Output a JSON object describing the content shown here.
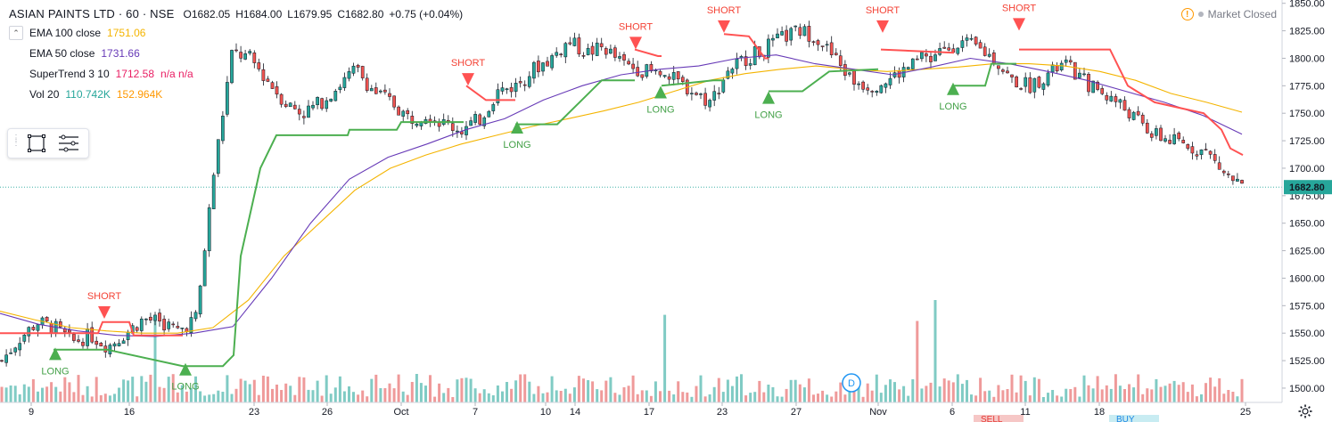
{
  "header": {
    "symbol": "ASIAN PAINTS LTD · 60 · NSE",
    "ohlc": {
      "open": "O1682.05",
      "high": "H1684.00",
      "low": "L1679.95",
      "close": "C1682.80",
      "change": "+0.75 (+0.04%)"
    },
    "market_status": "Market Closed"
  },
  "indicators": [
    {
      "name": "EMA 100 close",
      "value": "1751.06",
      "color": "#f4b400"
    },
    {
      "name": "EMA 50 close",
      "value": "1731.66",
      "color": "#673ab7"
    },
    {
      "name": "SuperTrend 3 10",
      "value": "1712.58",
      "extra": "n/a  n/a",
      "color": "#e91e63"
    },
    {
      "name": "Vol 20",
      "value": "110.742K",
      "value2": "152.964K",
      "color": "#26a69a",
      "color2": "#ff9800"
    }
  ],
  "toolbox": {
    "icons": [
      "rectangle-icon",
      "settings-lines-icon"
    ]
  },
  "last_price_label": "1682.80",
  "source_label": "D",
  "bottom_labels": [
    "SELL",
    "BUY"
  ],
  "colors": {
    "up": "#26a69a",
    "down": "#ef5350",
    "ema100": "#f4b400",
    "ema50": "#673ab7",
    "st_up": "#4caf50",
    "st_down": "#ff5252",
    "vol_up": "#80cbc4",
    "vol_down": "#ef9a9a"
  },
  "chart_data": {
    "type": "candlestick",
    "y_axis_ticks": [
      "1850.00",
      "1825.00",
      "1800.00",
      "1775.00",
      "1750.00",
      "1725.00",
      "1700.00",
      "1675.00",
      "1650.00",
      "1625.00",
      "1600.00",
      "1575.00",
      "1550.00",
      "1525.00",
      "1500.00"
    ],
    "y_range": [
      1487,
      1853
    ],
    "x_axis_ticks": [
      "9",
      "16",
      "23",
      "26",
      "Oct",
      "7",
      "10",
      "14",
      "17",
      "23",
      "27",
      "Nov",
      "6",
      "11",
      "18",
      "25"
    ],
    "close_waypoints": [
      1525,
      1545,
      1560,
      1555,
      1542,
      1548,
      1538,
      1550,
      1563,
      1560,
      1552,
      1565,
      1700,
      1805,
      1800,
      1780,
      1760,
      1750,
      1760,
      1775,
      1790,
      1770,
      1760,
      1745,
      1750,
      1740,
      1735,
      1745,
      1770,
      1775,
      1790,
      1800,
      1815,
      1805,
      1810,
      1795,
      1790,
      1785,
      1780,
      1770,
      1760,
      1790,
      1800,
      1808,
      1818,
      1825,
      1820,
      1800,
      1780,
      1775,
      1780,
      1790,
      1800,
      1805,
      1815,
      1810,
      1800,
      1780,
      1775,
      1785,
      1795,
      1780,
      1770,
      1760,
      1745,
      1730,
      1725,
      1720,
      1715,
      1695,
      1683
    ],
    "ema100_waypoints": [
      1570,
      1562,
      1555,
      1552,
      1550,
      1550,
      1555,
      1580,
      1620,
      1650,
      1680,
      1700,
      1712,
      1722,
      1730,
      1738,
      1745,
      1752,
      1760,
      1770,
      1780,
      1786,
      1790,
      1793,
      1790,
      1788,
      1790,
      1792,
      1795,
      1795,
      1793,
      1788,
      1780,
      1768,
      1760,
      1751
    ],
    "ema50_waypoints": [
      1568,
      1558,
      1552,
      1548,
      1547,
      1550,
      1556,
      1600,
      1650,
      1690,
      1710,
      1722,
      1735,
      1745,
      1762,
      1775,
      1785,
      1790,
      1793,
      1800,
      1803,
      1795,
      1790,
      1785,
      1792,
      1800,
      1795,
      1788,
      1780,
      1770,
      1760,
      1748,
      1731
    ],
    "supertrend_segments": [
      {
        "dir": "down",
        "points": [
          [
            0,
            1550
          ],
          [
            110,
            1550
          ],
          [
            115,
            1560
          ],
          [
            145,
            1560
          ],
          [
            150,
            1548
          ],
          [
            205,
            1548
          ]
        ]
      },
      {
        "dir": "up",
        "points": [
          [
            60,
            1535
          ],
          [
            110,
            1535
          ],
          [
            120,
            1535
          ],
          [
            205,
            1520
          ],
          [
            212,
            1520
          ],
          [
            250,
            1520
          ],
          [
            262,
            1530
          ],
          [
            270,
            1620
          ],
          [
            292,
            1700
          ],
          [
            310,
            1730
          ],
          [
            390,
            1730
          ],
          [
            392,
            1735
          ],
          [
            445,
            1735
          ],
          [
            450,
            1742
          ],
          [
            520,
            1742
          ]
        ]
      },
      {
        "dir": "down",
        "points": [
          [
            523,
            1775
          ],
          [
            545,
            1762
          ],
          [
            578,
            1762
          ]
        ]
      },
      {
        "dir": "up",
        "points": [
          [
            578,
            1740
          ],
          [
            625,
            1740
          ],
          [
            650,
            1760
          ],
          [
            675,
            1780
          ],
          [
            712,
            1780
          ]
        ]
      },
      {
        "dir": "down",
        "points": [
          [
            712,
            1808
          ],
          [
            738,
            1802
          ],
          [
            742,
            1802
          ]
        ]
      },
      {
        "dir": "up",
        "points": [
          [
            742,
            1775
          ],
          [
            800,
            1780
          ],
          [
            812,
            1780
          ]
        ]
      },
      {
        "dir": "down",
        "points": [
          [
            812,
            1822
          ],
          [
            840,
            1820
          ],
          [
            858,
            1800
          ],
          [
            862,
            1800
          ]
        ]
      },
      {
        "dir": "up",
        "points": [
          [
            862,
            1770
          ],
          [
            900,
            1770
          ],
          [
            930,
            1788
          ],
          [
            985,
            1790
          ]
        ]
      },
      {
        "dir": "down",
        "points": [
          [
            988,
            1808
          ],
          [
            1070,
            1805
          ]
        ]
      },
      {
        "dir": "up",
        "points": [
          [
            1070,
            1775
          ],
          [
            1105,
            1775
          ],
          [
            1112,
            1795
          ],
          [
            1140,
            1795
          ]
        ]
      },
      {
        "dir": "down",
        "points": [
          [
            1143,
            1808
          ],
          [
            1245,
            1808
          ],
          [
            1265,
            1775
          ],
          [
            1295,
            1760
          ],
          [
            1350,
            1750
          ],
          [
            1370,
            1735
          ],
          [
            1380,
            1718
          ],
          [
            1394,
            1712
          ]
        ]
      }
    ],
    "signals": [
      {
        "label": "LONG",
        "type": "long",
        "x": 62,
        "price": 1532
      },
      {
        "label": "SHORT",
        "type": "short",
        "x": 117,
        "price": 1568
      },
      {
        "label": "LONG",
        "type": "long",
        "x": 208,
        "price": 1518
      },
      {
        "label": "SHORT",
        "type": "short",
        "x": 525,
        "price": 1780
      },
      {
        "label": "LONG",
        "type": "long",
        "x": 580,
        "price": 1738
      },
      {
        "label": "SHORT",
        "type": "short",
        "x": 713,
        "price": 1813
      },
      {
        "label": "LONG",
        "type": "long",
        "x": 741,
        "price": 1770
      },
      {
        "label": "SHORT",
        "type": "short",
        "x": 812,
        "price": 1828
      },
      {
        "label": "LONG",
        "type": "long",
        "x": 862,
        "price": 1765
      },
      {
        "label": "SHORT",
        "type": "short",
        "x": 990,
        "price": 1828
      },
      {
        "label": "LONG",
        "type": "long",
        "x": 1069,
        "price": 1773
      },
      {
        "label": "SHORT",
        "type": "short",
        "x": 1143,
        "price": 1830
      }
    ],
    "volume_peak_indices": [
      34,
      147,
      203,
      207
    ],
    "last_price": 1682.8
  }
}
